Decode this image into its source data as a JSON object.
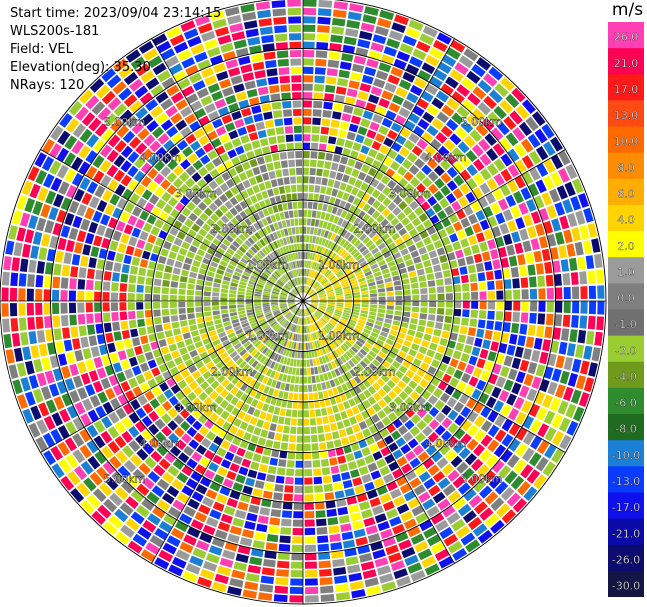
{
  "header": {
    "start_time": "Start time: 2023/09/04 23:14:15",
    "site": "WLS200s-181",
    "field": "Field: VEL",
    "elevation": "Elevation(deg): 35.30",
    "nrays": "NRays: 120"
  },
  "chart_data": {
    "type": "heatmap",
    "subtype": "polar-ppi",
    "title": "",
    "field": "VEL",
    "n_rays": 120,
    "max_range_km": 6.0,
    "range_rings_km": [
      1.0,
      2.0,
      3.0,
      4.0,
      5.0,
      6.0
    ],
    "ring_labels": [
      {
        "text": "1.00km",
        "dist_km": 1.0,
        "angle_deg": 45
      },
      {
        "text": "1.00km",
        "dist_km": 1.0,
        "angle_deg": 135
      },
      {
        "text": "1.00km",
        "dist_km": 1.0,
        "angle_deg": 225
      },
      {
        "text": "1.00km",
        "dist_km": 1.0,
        "angle_deg": 315
      },
      {
        "text": "2.00km",
        "dist_km": 2.0,
        "angle_deg": 45
      },
      {
        "text": "2.00km",
        "dist_km": 2.0,
        "angle_deg": 135
      },
      {
        "text": "2.00km",
        "dist_km": 2.0,
        "angle_deg": 225
      },
      {
        "text": "2.00km",
        "dist_km": 2.0,
        "angle_deg": 315
      },
      {
        "text": "3.00km",
        "dist_km": 3.0,
        "angle_deg": 45
      },
      {
        "text": "3.00km",
        "dist_km": 3.0,
        "angle_deg": 135
      },
      {
        "text": "3.00km",
        "dist_km": 3.0,
        "angle_deg": 225
      },
      {
        "text": "3.00km",
        "dist_km": 3.0,
        "angle_deg": 315
      },
      {
        "text": "4.00km",
        "dist_km": 4.0,
        "angle_deg": 45
      },
      {
        "text": "4.00km",
        "dist_km": 4.0,
        "angle_deg": 135
      },
      {
        "text": "4.00km",
        "dist_km": 4.0,
        "angle_deg": 225
      },
      {
        "text": "4.00km",
        "dist_km": 4.0,
        "angle_deg": 315
      },
      {
        "text": "5.00km",
        "dist_km": 5.0,
        "angle_deg": 45
      },
      {
        "text": "5.00km",
        "dist_km": 5.0,
        "angle_deg": 135
      },
      {
        "text": "5.00km",
        "dist_km": 5.0,
        "angle_deg": 225
      },
      {
        "text": "5.00km",
        "dist_km": 5.0,
        "angle_deg": 315
      }
    ],
    "colorbar": {
      "unit": "m/s",
      "ticks": [
        "26.0",
        "21.0",
        "17.0",
        "13.0",
        "10.0",
        "8.0",
        "6.0",
        "4.0",
        "2.0",
        "1.0",
        "0.0",
        "-1.0",
        "-2.0",
        "-4.0",
        "-6.0",
        "-8.0",
        "-10.0",
        "-13.0",
        "-17.0",
        "-21.0",
        "-26.0",
        "-30.0"
      ],
      "colors": [
        "#ff3fb4",
        "#ff0055",
        "#ff1a1a",
        "#ff4a14",
        "#ff6a00",
        "#ff8c00",
        "#ffae00",
        "#ffd400",
        "#ffff00",
        "#9b9b9b",
        "#7f7f7f",
        "#707070",
        "#9acd32",
        "#6f9a1c",
        "#2e8b2e",
        "#1f6b1f",
        "#1b7fd6",
        "#0a3cff",
        "#1010ee",
        "#0a0aa8",
        "#0c0c70",
        "#151545"
      ]
    }
  }
}
